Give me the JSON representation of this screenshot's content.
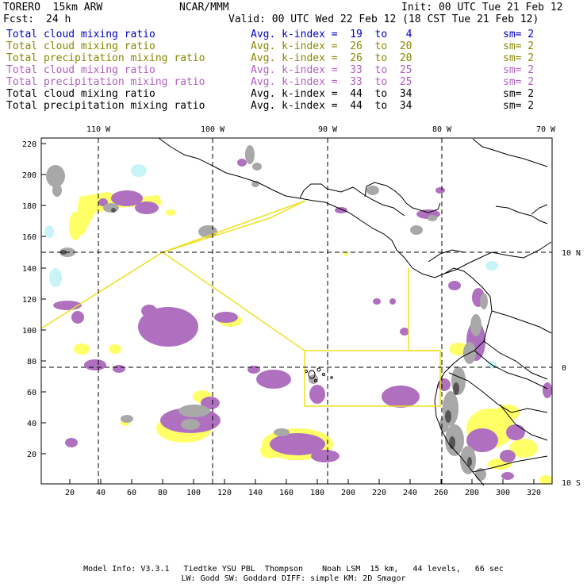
{
  "header": {
    "model": "TORERO  15km ARW",
    "center": "NCAR/MMM",
    "init": "Init: 00 UTC Tue 21 Feb 12",
    "fcst_label": "Fcst:",
    "fcst_value": "24 h",
    "valid": "Valid: 00 UTC Wed 22 Feb 12 (18 CST Tue 21 Feb 12)"
  },
  "legend": [
    {
      "field": "Total cloud mixing ratio",
      "index": "Avg. k-index =  19  to   4",
      "sm": "sm= 2",
      "color": "#0000cc"
    },
    {
      "field": "Total cloud mixing ratio",
      "index": "Avg. k-index =  26  to  20",
      "sm": "sm= 2",
      "color": "#888800"
    },
    {
      "field": "Total precipitation mixing ratio",
      "index": "Avg. k-index =  26  to  20",
      "sm": "sm= 2",
      "color": "#888800"
    },
    {
      "field": "Total cloud mixing ratio",
      "index": "Avg. k-index =  33  to  25",
      "sm": "sm= 2",
      "color": "#b060c0"
    },
    {
      "field": "Total precipitation mixing ratio",
      "index": "Avg. k-index =  33  to  25",
      "sm": "sm= 2",
      "color": "#b060c0"
    },
    {
      "field": "Total cloud mixing ratio",
      "index": "Avg. k-index =  44  to  34",
      "sm": "sm= 2",
      "color": "#000000"
    },
    {
      "field": "Total precipitation mixing ratio",
      "index": "Avg. k-index =  44  to  34",
      "sm": "sm= 2",
      "color": "#000000"
    }
  ],
  "axes": {
    "top_lon": [
      "110 W",
      "100 W",
      "90 W",
      "80 W",
      "70 W"
    ],
    "right_lat": [
      "10 N",
      "0",
      "10 S"
    ],
    "left_y": [
      "220",
      "200",
      "180",
      "160",
      "140",
      "120",
      "100",
      "80",
      "60",
      "40",
      "20"
    ],
    "bottom_x": [
      "20",
      "40",
      "60",
      "80",
      "100",
      "120",
      "140",
      "160",
      "180",
      "200",
      "220",
      "240",
      "260",
      "280",
      "300",
      "320"
    ]
  },
  "colors": {
    "cloud_light": "#c8f4f8",
    "cloud_mid": "#ffff66",
    "cloud_high": "#b070c0",
    "cloud_top": "#a8a8a8",
    "domain_box": "#f0e020",
    "grid": "#000000"
  },
  "footer": {
    "line1": "Model Info: V3.3.1   Tiedtke YSU PBL  Thompson    Noah LSM  15 km,   44 levels,   66 sec",
    "line2": "LW: Godd SW: Goddard DIFF: simple KM: 2D Smagor"
  }
}
